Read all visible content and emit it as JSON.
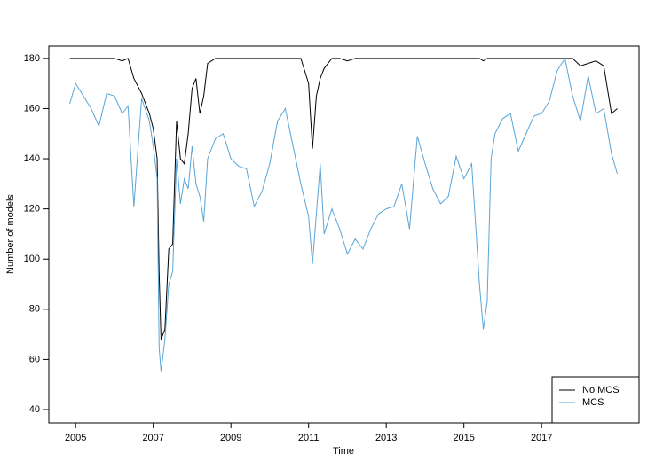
{
  "chart_data": {
    "type": "line",
    "xlabel": "Time",
    "ylabel": "Number of models",
    "x": [
      2004.85,
      2005.0,
      2005.2,
      2005.4,
      2005.6,
      2005.8,
      2006.0,
      2006.2,
      2006.35,
      2006.5,
      2006.7,
      2006.9,
      2007.0,
      2007.1,
      2007.15,
      2007.2,
      2007.3,
      2007.4,
      2007.5,
      2007.6,
      2007.7,
      2007.8,
      2007.9,
      2008.0,
      2008.1,
      2008.2,
      2008.3,
      2008.4,
      2008.6,
      2008.8,
      2009.0,
      2009.2,
      2009.4,
      2009.6,
      2009.8,
      2010.0,
      2010.2,
      2010.4,
      2010.6,
      2010.8,
      2011.0,
      2011.1,
      2011.2,
      2011.3,
      2011.4,
      2011.6,
      2011.8,
      2012.0,
      2012.2,
      2012.4,
      2012.6,
      2012.8,
      2013.0,
      2013.2,
      2013.4,
      2013.6,
      2013.8,
      2014.0,
      2014.2,
      2014.4,
      2014.6,
      2014.8,
      2015.0,
      2015.2,
      2015.4,
      2015.5,
      2015.6,
      2015.7,
      2015.8,
      2016.0,
      2016.2,
      2016.4,
      2016.6,
      2016.8,
      2017.0,
      2017.2,
      2017.4,
      2017.6,
      2017.8,
      2018.0,
      2018.2,
      2018.4,
      2018.6,
      2018.8,
      2018.95
    ],
    "series": [
      {
        "name": "No MCS",
        "color": "#000000",
        "values": [
          180,
          180,
          180,
          180,
          180,
          180,
          180,
          179,
          180,
          172,
          166,
          158,
          152,
          140,
          95,
          68,
          72,
          104,
          106,
          155,
          140,
          138,
          150,
          168,
          172,
          158,
          165,
          178,
          180,
          180,
          180,
          180,
          180,
          180,
          180,
          180,
          180,
          180,
          180,
          180,
          170,
          144,
          165,
          172,
          176,
          180,
          180,
          179,
          180,
          180,
          180,
          180,
          180,
          180,
          180,
          180,
          180,
          180,
          180,
          180,
          180,
          180,
          180,
          180,
          180,
          179,
          180,
          180,
          180,
          180,
          180,
          180,
          180,
          180,
          180,
          180,
          180,
          180,
          180,
          177,
          178,
          179,
          177,
          158,
          160
        ]
      },
      {
        "name": "MCS",
        "color": "#5aa5d8",
        "values": [
          162,
          170,
          165,
          160,
          153,
          166,
          165,
          158,
          161,
          121,
          164,
          155,
          145,
          132,
          65,
          55,
          68,
          90,
          95,
          140,
          122,
          132,
          128,
          145,
          130,
          125,
          115,
          140,
          148,
          150,
          140,
          137,
          136,
          121,
          127,
          138,
          155,
          160,
          145,
          130,
          117,
          98,
          118,
          138,
          110,
          120,
          112,
          102,
          108,
          104,
          112,
          118,
          120,
          121,
          130,
          112,
          149,
          138,
          128,
          122,
          125,
          141,
          132,
          138,
          90,
          72,
          83,
          140,
          150,
          156,
          158,
          143,
          150,
          157,
          158,
          163,
          175,
          180,
          165,
          155,
          173,
          158,
          160,
          142,
          134
        ]
      }
    ],
    "xlim": [
      2004.31,
      2019.51
    ],
    "xticks": [
      2005,
      2007,
      2009,
      2011,
      2013,
      2015,
      2017
    ],
    "ylim": [
      34.7,
      184.9
    ],
    "yticks": [
      40,
      60,
      80,
      100,
      120,
      140,
      160,
      180
    ],
    "legend": "bottomright"
  }
}
